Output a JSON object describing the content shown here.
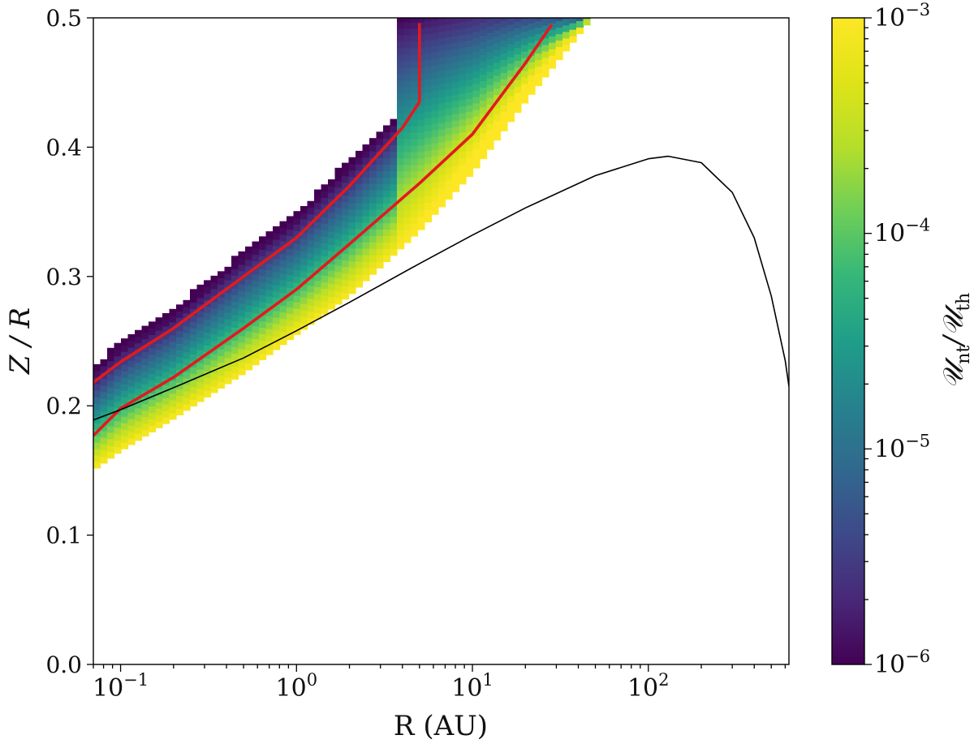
{
  "chart_data": {
    "type": "heatmap",
    "x_scale": "log",
    "xlim": [
      0.07,
      630
    ],
    "ylim": [
      0.0,
      0.5
    ],
    "xlabel": "R (AU)",
    "ylabel": "Z / R",
    "x_ticks": [
      {
        "value": 0.1,
        "base": "10",
        "exp": "−1"
      },
      {
        "value": 1,
        "base": "10",
        "exp": "0"
      },
      {
        "value": 10,
        "base": "10",
        "exp": "1"
      },
      {
        "value": 100,
        "base": "10",
        "exp": "2"
      }
    ],
    "y_ticks": [
      {
        "value": 0.0,
        "label": "0.0"
      },
      {
        "value": 0.1,
        "label": "0.1"
      },
      {
        "value": 0.2,
        "label": "0.2"
      },
      {
        "value": 0.3,
        "label": "0.3"
      },
      {
        "value": 0.4,
        "label": "0.4"
      },
      {
        "value": 0.5,
        "label": "0.5"
      }
    ],
    "colorbar": {
      "scale": "log",
      "colormap": "viridis",
      "range": [
        1e-06,
        0.001
      ],
      "label_main": "𝒰",
      "label_sub1": "nt",
      "label_sep": "/",
      "label_sub2": "th",
      "ticks": [
        {
          "value": 1e-06,
          "base": "10",
          "exp": "−6"
        },
        {
          "value": 1e-05,
          "base": "10",
          "exp": "−5"
        },
        {
          "value": 0.0001,
          "base": "10",
          "exp": "−4"
        },
        {
          "value": 0.001,
          "base": "10",
          "exp": "−3"
        }
      ]
    },
    "heatmap": {
      "description_of_band": "log10(U_nt/U_th) ranges from -6 at the upper boundary to -3 at the lower boundary of a band in (R, Z/R)",
      "upper_boundary": {
        "R": [
          0.07,
          0.1,
          0.2,
          0.5,
          1.0,
          2.0,
          3.6
        ],
        "Z_over_R": [
          0.225,
          0.245,
          0.27,
          0.315,
          0.345,
          0.385,
          0.42
        ]
      },
      "vertical_cut_R": 3.6,
      "lower_boundary": {
        "R": [
          0.07,
          0.1,
          0.2,
          0.5,
          1.0,
          2.0,
          5.0,
          10.0,
          20.0,
          48.0
        ],
        "Z_over_R": [
          0.15,
          0.165,
          0.19,
          0.225,
          0.255,
          0.285,
          0.335,
          0.38,
          0.435,
          0.5
        ]
      }
    },
    "series": [
      {
        "color": "#e31a1c",
        "R": [
          0.07,
          0.1,
          0.2,
          0.5,
          1.0,
          2.0,
          4.0,
          5.0,
          5.0
        ],
        "Z_over_R": [
          0.218,
          0.234,
          0.26,
          0.3,
          0.33,
          0.37,
          0.415,
          0.435,
          0.495
        ]
      },
      {
        "color": "#e31a1c",
        "R": [
          0.07,
          0.1,
          0.2,
          0.5,
          1.0,
          2.0,
          5.0,
          10.0,
          20.0,
          28.0
        ],
        "Z_over_R": [
          0.177,
          0.198,
          0.222,
          0.26,
          0.29,
          0.325,
          0.372,
          0.41,
          0.465,
          0.494
        ]
      },
      {
        "color": "#000000",
        "R": [
          0.07,
          0.1,
          0.2,
          0.5,
          1.0,
          2.0,
          5.0,
          10.0,
          20.0,
          50.0,
          100.0,
          130.0,
          200.0,
          300.0,
          400.0,
          500.0,
          600.0,
          630.0
        ],
        "Z_over_R": [
          0.189,
          0.197,
          0.214,
          0.237,
          0.258,
          0.28,
          0.31,
          0.332,
          0.353,
          0.378,
          0.391,
          0.393,
          0.388,
          0.365,
          0.33,
          0.285,
          0.235,
          0.215
        ]
      }
    ]
  }
}
